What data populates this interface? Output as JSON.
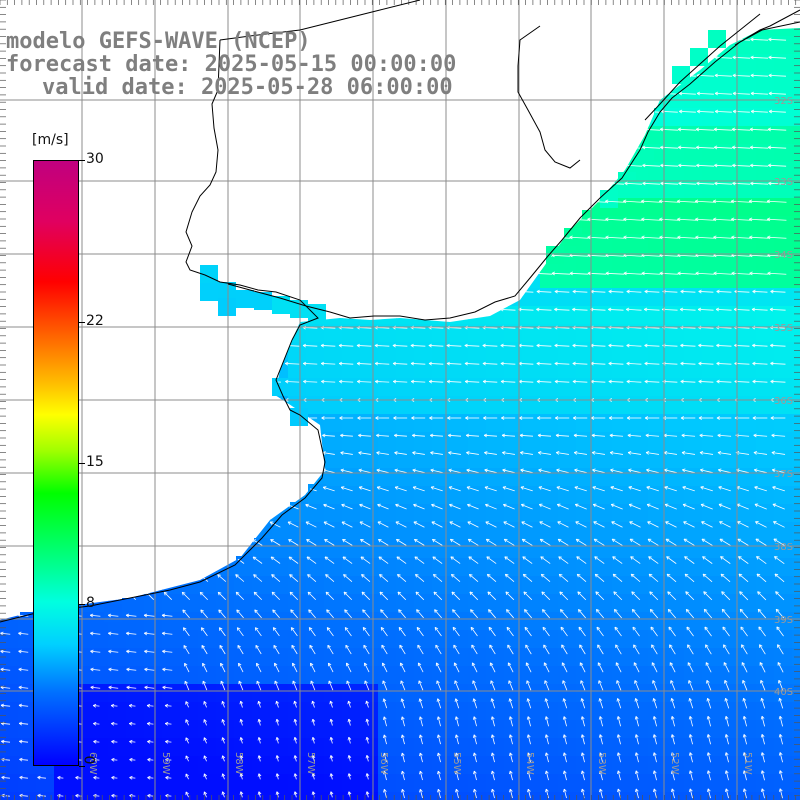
{
  "title": {
    "model": "modelo GEFS-WAVE (NCEP)",
    "forecast": "forecast date: 2025-05-15 00:00:00",
    "valid": "valid date: 2025-05-28 06:00:00"
  },
  "colorbar": {
    "unit": "[m/s]",
    "ticks": [
      {
        "value": 30,
        "label": "30"
      },
      {
        "value": 22,
        "label": "22"
      },
      {
        "value": 15,
        "label": "15"
      },
      {
        "value": 8,
        "label": "8"
      },
      {
        "value": 0,
        "label": "0"
      }
    ],
    "range": [
      0,
      30
    ]
  },
  "map": {
    "lat_labels": [
      "32S",
      "33S",
      "34S",
      "35S",
      "36S",
      "37S",
      "38S",
      "39S",
      "40S"
    ],
    "lon_labels": [
      "60W",
      "59W",
      "58W",
      "57W",
      "56W",
      "55W",
      "54W",
      "53W",
      "52W",
      "51W"
    ],
    "colors": {
      "land": "#ffffff",
      "grid": "#8c8c8c",
      "coast": "#000000",
      "arrows": "#ffffff"
    }
  }
}
